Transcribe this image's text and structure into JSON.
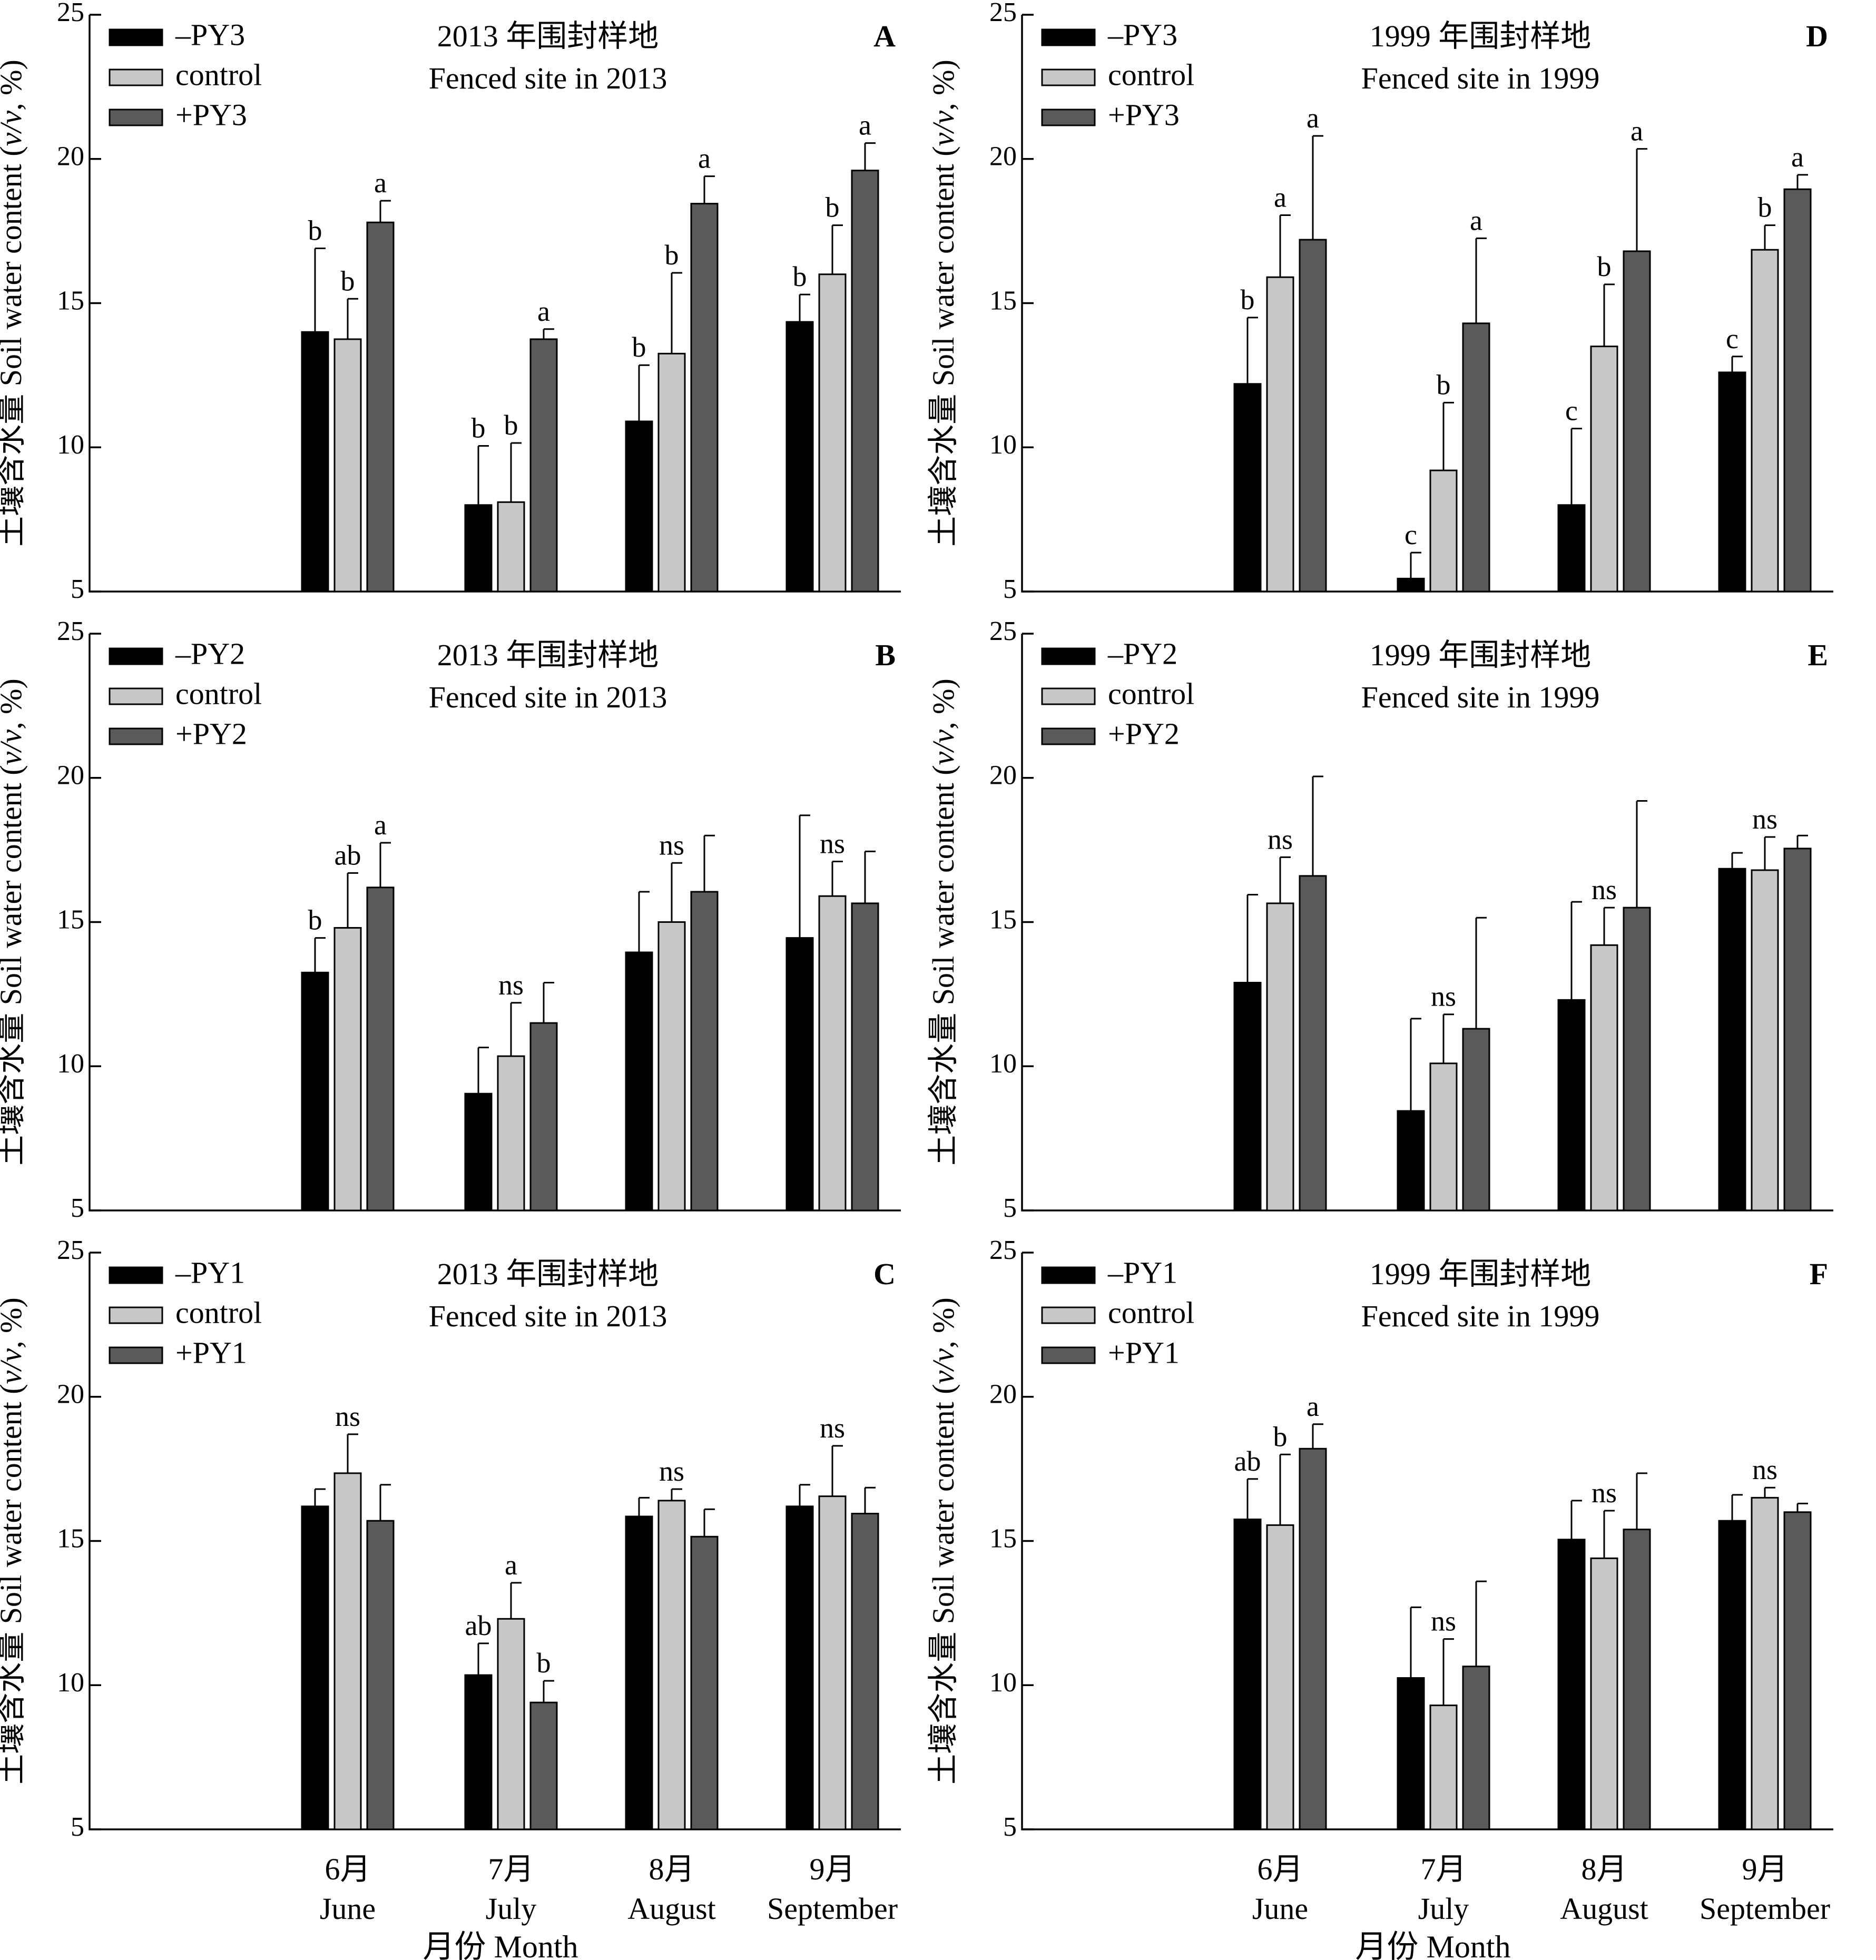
{
  "chart_data": [
    {
      "type": "bar",
      "letter": "A",
      "title_cn": "2013 年围封样地",
      "title_en": "Fenced site in 2013",
      "categories": [
        "6月 June",
        "7月 July",
        "8月 August",
        "9月 September"
      ],
      "series": [
        {
          "name": "–PY3",
          "values": [
            14.0,
            8.0,
            10.9,
            14.35
          ],
          "errors": [
            2.9,
            2.05,
            1.95,
            0.95
          ]
        },
        {
          "name": "control",
          "values": [
            13.75,
            8.1,
            13.25,
            16.0
          ],
          "errors": [
            1.4,
            2.05,
            2.8,
            1.7
          ]
        },
        {
          "name": "+PY3",
          "values": [
            17.8,
            13.75,
            18.45,
            19.6
          ],
          "errors": [
            0.75,
            0.35,
            0.95,
            0.95
          ]
        }
      ],
      "letters": [
        [
          "b",
          "b",
          "a"
        ],
        [
          "b",
          "b",
          "a"
        ],
        [
          "b",
          "b",
          "a"
        ],
        [
          "b",
          "b",
          "a"
        ]
      ],
      "ylim": [
        5,
        25
      ],
      "yticks": [
        5,
        10,
        15,
        20,
        25
      ]
    },
    {
      "type": "bar",
      "letter": "B",
      "title_cn": "2013 年围封样地",
      "title_en": "Fenced site in 2013",
      "categories": [
        "6月 June",
        "7月 July",
        "8月 August",
        "9月 September"
      ],
      "series": [
        {
          "name": "–PY2",
          "values": [
            13.25,
            9.05,
            13.95,
            14.45
          ],
          "errors": [
            1.2,
            1.6,
            2.1,
            4.25
          ]
        },
        {
          "name": "control",
          "values": [
            14.8,
            10.35,
            15.0,
            15.9
          ],
          "errors": [
            1.9,
            1.85,
            2.05,
            1.2
          ]
        },
        {
          "name": "+PY2",
          "values": [
            16.2,
            11.5,
            16.05,
            15.65
          ],
          "errors": [
            1.55,
            1.4,
            1.95,
            1.8
          ]
        }
      ],
      "letters": [
        [
          "b",
          "ab",
          "a"
        ],
        [
          "",
          "ns",
          ""
        ],
        [
          "",
          "ns",
          ""
        ],
        [
          "",
          "ns",
          ""
        ]
      ],
      "ylim": [
        5,
        25
      ],
      "yticks": [
        5,
        10,
        15,
        20,
        25
      ]
    },
    {
      "type": "bar",
      "letter": "C",
      "title_cn": "2013 年围封样地",
      "title_en": "Fenced site in 2013",
      "categories": [
        "6月 June",
        "7月 July",
        "8月 August",
        "9月 September"
      ],
      "series": [
        {
          "name": "–PY1",
          "values": [
            16.2,
            10.35,
            15.85,
            16.2
          ],
          "errors": [
            0.6,
            1.1,
            0.65,
            0.75
          ]
        },
        {
          "name": "control",
          "values": [
            17.35,
            12.3,
            16.4,
            16.55
          ],
          "errors": [
            1.35,
            1.25,
            0.4,
            1.75
          ]
        },
        {
          "name": "+PY1",
          "values": [
            15.7,
            9.4,
            15.15,
            15.95
          ],
          "errors": [
            1.25,
            0.75,
            0.95,
            0.9
          ]
        }
      ],
      "letters": [
        [
          "",
          "ns",
          ""
        ],
        [
          "ab",
          "a",
          "b"
        ],
        [
          "",
          "ns",
          ""
        ],
        [
          "",
          "ns",
          ""
        ]
      ],
      "ylim": [
        5,
        25
      ],
      "yticks": [
        5,
        10,
        15,
        20,
        25
      ]
    },
    {
      "type": "bar",
      "letter": "D",
      "title_cn": "1999 年围封样地",
      "title_en": "Fenced site in 1999",
      "categories": [
        "6月 June",
        "7月 July",
        "8月 August",
        "9月 September"
      ],
      "series": [
        {
          "name": "–PY3",
          "values": [
            12.2,
            5.45,
            8.0,
            12.6
          ],
          "errors": [
            2.3,
            0.9,
            2.65,
            0.55
          ]
        },
        {
          "name": "control",
          "values": [
            15.9,
            9.2,
            13.5,
            16.85
          ],
          "errors": [
            2.15,
            2.35,
            2.15,
            0.85
          ]
        },
        {
          "name": "+PY3",
          "values": [
            17.2,
            14.3,
            16.8,
            18.95
          ],
          "errors": [
            3.6,
            2.95,
            3.55,
            0.5
          ]
        }
      ],
      "letters": [
        [
          "b",
          "a",
          "a"
        ],
        [
          "c",
          "b",
          "a"
        ],
        [
          "c",
          "b",
          "a"
        ],
        [
          "c",
          "b",
          "a"
        ]
      ],
      "ylim": [
        5,
        25
      ],
      "yticks": [
        5,
        10,
        15,
        20,
        25
      ]
    },
    {
      "type": "bar",
      "letter": "E",
      "title_cn": "1999 年围封样地",
      "title_en": "Fenced site in 1999",
      "categories": [
        "6月 June",
        "7月 July",
        "8月 August",
        "9月 September"
      ],
      "series": [
        {
          "name": "–PY2",
          "values": [
            12.9,
            8.45,
            12.3,
            16.85
          ],
          "errors": [
            3.05,
            3.2,
            3.4,
            0.55
          ]
        },
        {
          "name": "control",
          "values": [
            15.65,
            10.1,
            14.2,
            16.8
          ],
          "errors": [
            1.6,
            1.7,
            1.3,
            1.15
          ]
        },
        {
          "name": "+PY2",
          "values": [
            16.6,
            11.3,
            15.5,
            17.55
          ],
          "errors": [
            3.45,
            3.85,
            3.7,
            0.45
          ]
        }
      ],
      "letters": [
        [
          "",
          "ns",
          ""
        ],
        [
          "",
          "ns",
          ""
        ],
        [
          "",
          "ns",
          ""
        ],
        [
          "",
          "ns",
          ""
        ]
      ],
      "ylim": [
        5,
        25
      ],
      "yticks": [
        5,
        10,
        15,
        20,
        25
      ]
    },
    {
      "type": "bar",
      "letter": "F",
      "title_cn": "1999 年围封样地",
      "title_en": "Fenced site in 1999",
      "categories": [
        "6月 June",
        "7月 July",
        "8月 August",
        "9月 September"
      ],
      "series": [
        {
          "name": "–PY1",
          "values": [
            15.75,
            10.25,
            15.05,
            15.7
          ],
          "errors": [
            1.4,
            2.45,
            1.35,
            0.9
          ]
        },
        {
          "name": "control",
          "values": [
            15.55,
            9.3,
            14.4,
            16.5
          ],
          "errors": [
            2.45,
            2.3,
            1.65,
            0.35
          ]
        },
        {
          "name": "+PY1",
          "values": [
            18.2,
            10.65,
            15.4,
            16.0
          ],
          "errors": [
            0.85,
            2.95,
            1.95,
            0.3
          ]
        }
      ],
      "letters": [
        [
          "ab",
          "b",
          "a"
        ],
        [
          "",
          "ns",
          ""
        ],
        [
          "",
          "ns",
          ""
        ],
        [
          "",
          "ns",
          ""
        ]
      ],
      "ylim": [
        5,
        25
      ],
      "yticks": [
        5,
        10,
        15,
        20,
        25
      ]
    }
  ],
  "axis_text": {
    "ylabel": "土壤含水量 Soil water content (v/v, %)",
    "ylabel_parts": [
      "土壤含水量 Soil water content (",
      "v/v",
      ", %)"
    ],
    "xlabel": "月份 Month",
    "month_cn": [
      "6月",
      "7月",
      "8月",
      "9月"
    ],
    "month_en": [
      "June",
      "July",
      "August",
      "September"
    ]
  },
  "colors": {
    "minus": "#000000",
    "control": "#c8c8c8",
    "plus": "#5a5a5a"
  }
}
